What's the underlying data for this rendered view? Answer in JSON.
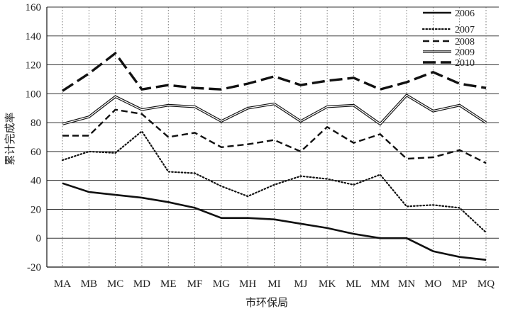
{
  "chart_data": {
    "type": "line",
    "title": "",
    "xlabel": "市环保局",
    "ylabel": "累计完成率",
    "ylim": [
      -20,
      160
    ],
    "yticks": [
      -20,
      0,
      20,
      40,
      60,
      80,
      100,
      120,
      140,
      160
    ],
    "categories": [
      "MA",
      "MB",
      "MC",
      "MD",
      "ME",
      "MF",
      "MG",
      "MH",
      "MI",
      "MJ",
      "MK",
      "ML",
      "MM",
      "MN",
      "MO",
      "MP",
      "MQ"
    ],
    "grid": "horizontal lines at y ticks; dotted vertical lines per category",
    "legend_position": "top-right",
    "series": [
      {
        "name": "2006",
        "style": "solid-thick",
        "color": "#111111",
        "values": [
          38,
          32,
          30,
          28,
          25,
          21,
          14,
          14,
          13,
          10,
          7,
          3,
          0,
          0,
          -9,
          -13,
          -15
        ]
      },
      {
        "name": "2007",
        "style": "dotted",
        "color": "#111111",
        "values": [
          54,
          60,
          59,
          74,
          46,
          45,
          36,
          29,
          37,
          43,
          41,
          37,
          44,
          22,
          23,
          21,
          4
        ]
      },
      {
        "name": "2008",
        "style": "dashed-short",
        "color": "#111111",
        "values": [
          71,
          71,
          89,
          86,
          70,
          73,
          63,
          65,
          68,
          60,
          77,
          66,
          72,
          55,
          56,
          61,
          52
        ]
      },
      {
        "name": "2009",
        "style": "double-line",
        "color": "#111111",
        "values": [
          79,
          84,
          98,
          89,
          92,
          91,
          81,
          90,
          93,
          81,
          91,
          92,
          79,
          99,
          88,
          92,
          80
        ]
      },
      {
        "name": "2010",
        "style": "dashed-long",
        "color": "#111111",
        "values": [
          102,
          114,
          128,
          103,
          106,
          104,
          103,
          107,
          112,
          106,
          109,
          111,
          103,
          108,
          115,
          107,
          104
        ]
      }
    ]
  }
}
